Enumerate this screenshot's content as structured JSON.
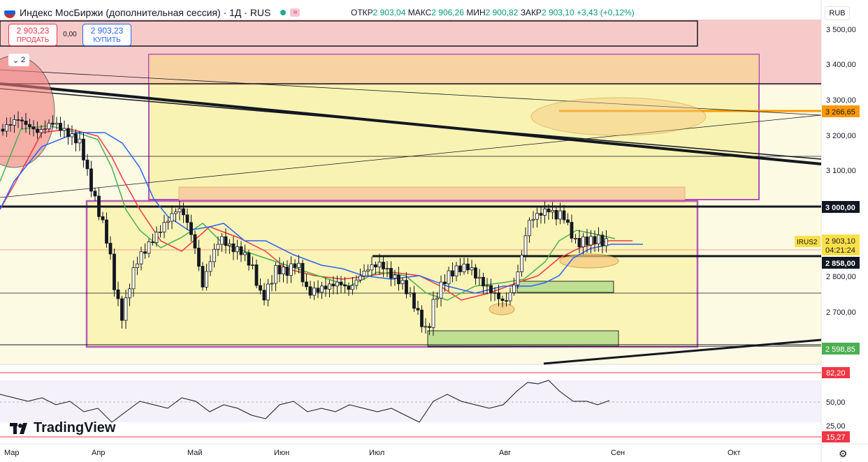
{
  "header": {
    "title": "Индекс МосБиржи (дополнительная сессия) · 1Д · RUS",
    "wave_icon": "≈",
    "ohlc": [
      {
        "label": "ОТКР",
        "value": "2 903,04"
      },
      {
        "label": "МАКС",
        "value": "2 906,26"
      },
      {
        "label": "МИН",
        "value": "2 900,82"
      },
      {
        "label": "ЗАКР",
        "value": "2 903,10"
      }
    ],
    "change": "+3,43 (+0,12%)"
  },
  "trade": {
    "sell_price": "2 903,23",
    "sell_label": "ПРОДАТЬ",
    "spread": "0,00",
    "buy_price": "2 903,23",
    "buy_label": "КУПИТЬ"
  },
  "indicators_toggle": "2",
  "currency": "RUB",
  "logo_text": "TradingView",
  "colors": {
    "up": "#089981",
    "down": "#f23645",
    "accent": "#2962ff",
    "ma_fast": "#f23645",
    "ma_mid": "#4caf50",
    "ma_slow": "#2962ff",
    "box_purple": "#9c27b0",
    "orange_line": "#ff9800"
  },
  "price_scale": [
    "3 500,00",
    "3 400,00",
    "3 300,00",
    "3 200,00",
    "3 100,00",
    "2 800,00",
    "2 700,00"
  ],
  "price_badges": [
    {
      "label": "3 266,65",
      "style": "orange"
    },
    {
      "label": "3 000,00",
      "style": "dark"
    },
    {
      "label": "2 858,00",
      "style": "dark"
    },
    {
      "label": "2 598,85",
      "style": "green"
    }
  ],
  "current_price": {
    "symbol": "IRUS2",
    "price": "2 903,10",
    "countdown": "04:21:24"
  },
  "rsi_scale": {
    "upper": "82,20",
    "mid": "50,00",
    "low": "25,00",
    "lower": "15,27"
  },
  "time_axis": [
    "Мар",
    "Апр",
    "Май",
    "Июн",
    "Июл",
    "Авг",
    "Сен",
    "Окт"
  ]
}
